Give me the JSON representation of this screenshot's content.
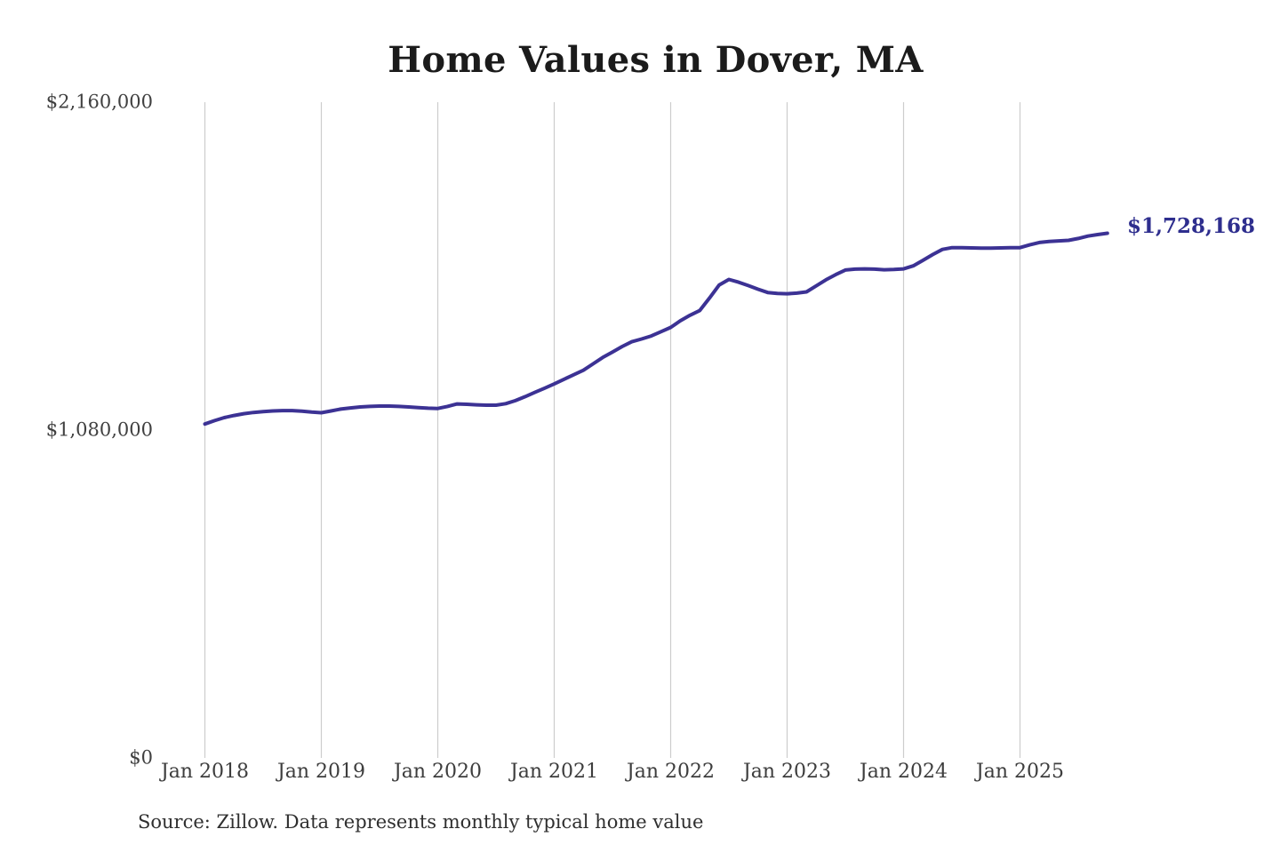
{
  "chart_data": {
    "type": "line",
    "title": "Home Values in Dover, MA",
    "source_note": "Source: Zillow. Data represents monthly typical home value",
    "end_point_label": "$1,728,168",
    "x_start": "2018-01",
    "x_interval": "monthly",
    "x_end": "2025-10",
    "values": [
      1100000,
      1111000,
      1121000,
      1128000,
      1134000,
      1138000,
      1141000,
      1143000,
      1144000,
      1144000,
      1142000,
      1139000,
      1137000,
      1143000,
      1149000,
      1153000,
      1156000,
      1158000,
      1159000,
      1159000,
      1158000,
      1156000,
      1154000,
      1152000,
      1151000,
      1158000,
      1166000,
      1165000,
      1163000,
      1162000,
      1162000,
      1167000,
      1177000,
      1190000,
      1204000,
      1218000,
      1232000,
      1247000,
      1262000,
      1277000,
      1298000,
      1319000,
      1337000,
      1355000,
      1371000,
      1380000,
      1390000,
      1404000,
      1418000,
      1440000,
      1458000,
      1474000,
      1515000,
      1558000,
      1576000,
      1567000,
      1556000,
      1544000,
      1533000,
      1530000,
      1529000,
      1531000,
      1535000,
      1555000,
      1575000,
      1592000,
      1607000,
      1610000,
      1611000,
      1610000,
      1608000,
      1609000,
      1611000,
      1621000,
      1639000,
      1658000,
      1675000,
      1681000,
      1681000,
      1680000,
      1679000,
      1679000,
      1680000,
      1681000,
      1681000,
      1690000,
      1698000,
      1701000,
      1703000,
      1705000,
      1711000,
      1719000,
      1724000,
      1728168
    ],
    "final_value": 1728168,
    "ylim": [
      0,
      2160000
    ],
    "y_ticks": [
      {
        "value": 2160000,
        "label": "$2,160,000"
      },
      {
        "value": 1080000,
        "label": "$1,080,000"
      },
      {
        "value": 0,
        "label": "$0"
      }
    ],
    "x_ticks": [
      {
        "index": 0,
        "label": "Jan 2018"
      },
      {
        "index": 12,
        "label": "Jan 2019"
      },
      {
        "index": 24,
        "label": "Jan 2020"
      },
      {
        "index": 36,
        "label": "Jan 2021"
      },
      {
        "index": 48,
        "label": "Jan 2022"
      },
      {
        "index": 60,
        "label": "Jan 2023"
      },
      {
        "index": 72,
        "label": "Jan 2024"
      },
      {
        "index": 84,
        "label": "Jan 2025"
      }
    ],
    "grid": "vertical-only",
    "legend": "none"
  },
  "colors": {
    "line": "#3c3294",
    "grid": "#cdcdcd",
    "title_text": "#1b1b1b",
    "axis_text": "#404040",
    "end_label_text": "#2e2e8e",
    "source_text": "#2f2f2f",
    "background": "#ffffff"
  }
}
